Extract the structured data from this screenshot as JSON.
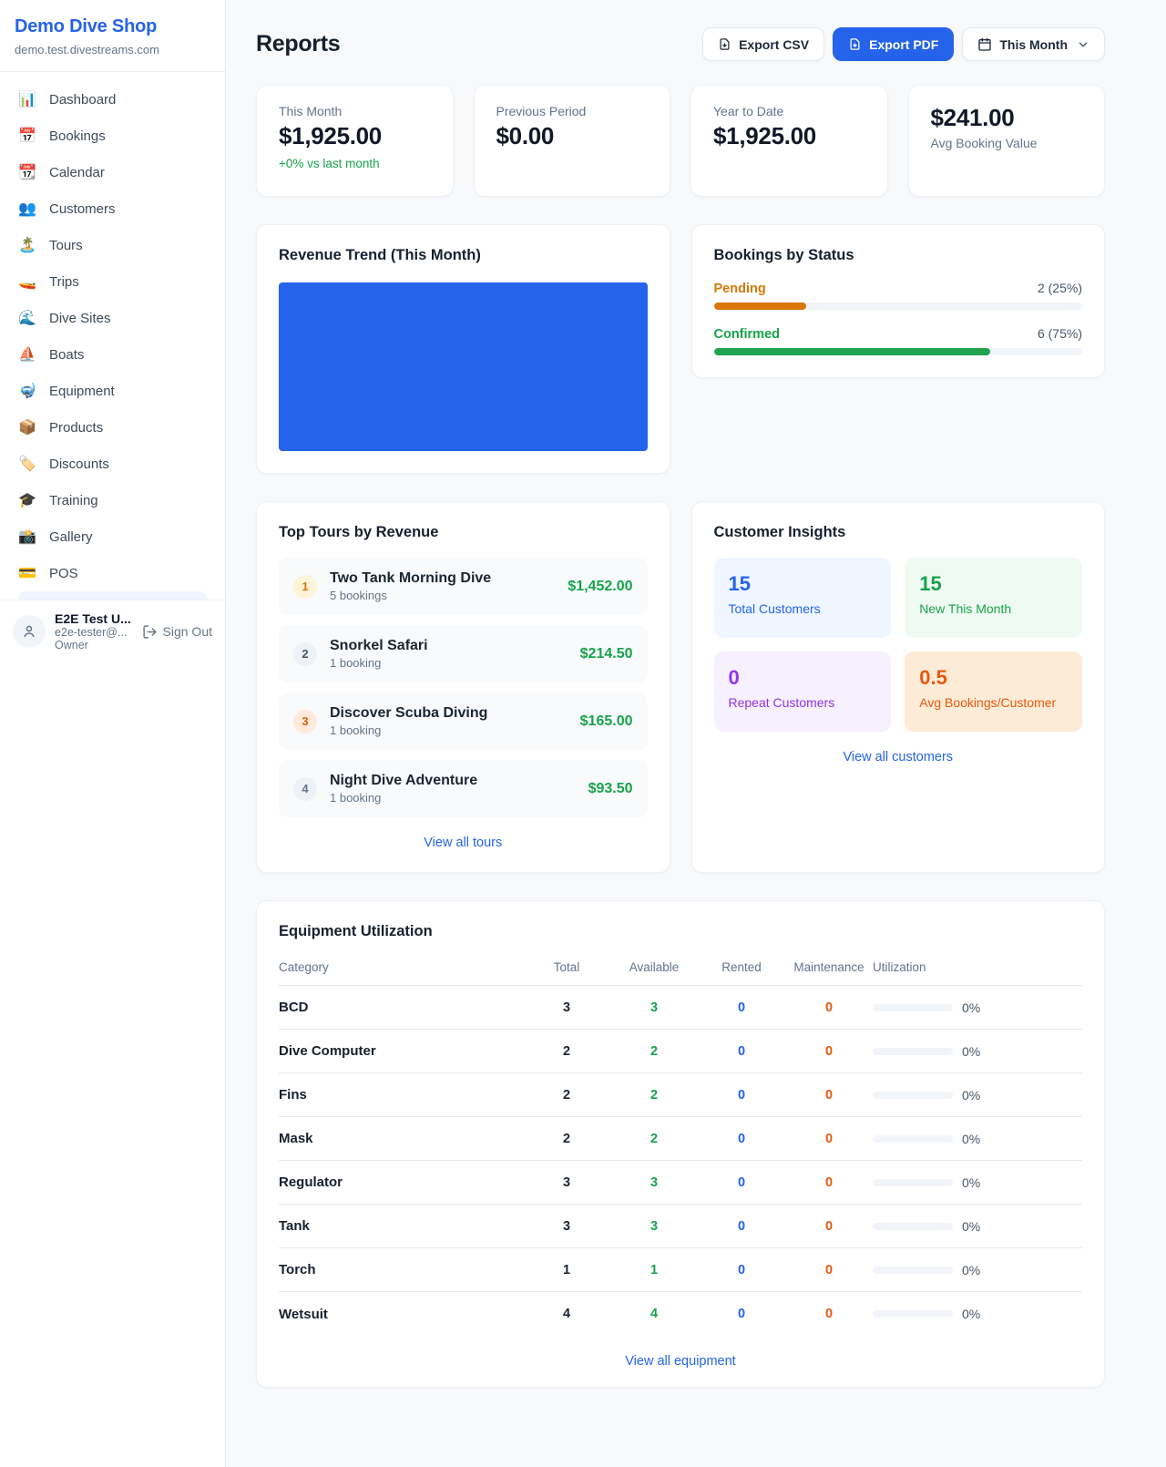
{
  "colors": {
    "accent_blue": "#2563eb",
    "green": "#16a34a",
    "orange_pending": "#d97706",
    "orange_deep": "#ea580c",
    "purple": "#9333ea",
    "page_bg": "#f7f9fb"
  },
  "sidebar": {
    "shop_name": "Demo Dive Shop",
    "shop_domain": "demo.test.divestreams.com",
    "items": [
      {
        "label": "Dashboard",
        "icon": "📊"
      },
      {
        "label": "Bookings",
        "icon": "📅"
      },
      {
        "label": "Calendar",
        "icon": "📆"
      },
      {
        "label": "Customers",
        "icon": "👥"
      },
      {
        "label": "Tours",
        "icon": "🏝️"
      },
      {
        "label": "Trips",
        "icon": "🚤"
      },
      {
        "label": "Dive Sites",
        "icon": "🌊"
      },
      {
        "label": "Boats",
        "icon": "⛵"
      },
      {
        "label": "Equipment",
        "icon": "🤿"
      },
      {
        "label": "Products",
        "icon": "📦"
      },
      {
        "label": "Discounts",
        "icon": "🏷️"
      },
      {
        "label": "Training",
        "icon": "🎓"
      },
      {
        "label": "Gallery",
        "icon": "📸"
      },
      {
        "label": "POS",
        "icon": "💳"
      }
    ],
    "user": {
      "name": "E2E Test U...",
      "email": "e2e-tester@...",
      "role": "Owner",
      "signout_label": "Sign Out"
    }
  },
  "header": {
    "title": "Reports",
    "export_csv_label": "Export CSV",
    "export_pdf_label": "Export PDF",
    "period_label": "This Month"
  },
  "stats": [
    {
      "label": "This Month",
      "value": "$1,925.00",
      "delta": "+0% vs last month"
    },
    {
      "label": "Previous Period",
      "value": "$0.00",
      "delta": ""
    },
    {
      "label": "Year to Date",
      "value": "$1,925.00",
      "delta": ""
    },
    {
      "label": "Avg Booking Value",
      "value": "$241.00",
      "delta": ""
    }
  ],
  "revenue_trend": {
    "title": "Revenue Trend (This Month)",
    "chart_note": "single solid blue filled block spanning full plot area",
    "fill_color": "#2563eb"
  },
  "bookings_by_status": {
    "title": "Bookings by Status",
    "statuses": [
      {
        "name": "Pending",
        "count_label": "2 (25%)",
        "pct": 25,
        "color": "#d97706"
      },
      {
        "name": "Confirmed",
        "count_label": "6 (75%)",
        "pct": 75,
        "color": "#16a34a"
      }
    ]
  },
  "top_tours": {
    "title": "Top Tours by Revenue",
    "view_all_label": "View all tours",
    "tours": [
      {
        "rank": "1",
        "name": "Two Tank Morning Dive",
        "bookings": "5 bookings",
        "revenue": "$1,452.00"
      },
      {
        "rank": "2",
        "name": "Snorkel Safari",
        "bookings": "1 booking",
        "revenue": "$214.50"
      },
      {
        "rank": "3",
        "name": "Discover Scuba Diving",
        "bookings": "1 booking",
        "revenue": "$165.00"
      },
      {
        "rank": "4",
        "name": "Night Dive Adventure",
        "bookings": "1 booking",
        "revenue": "$93.50"
      }
    ]
  },
  "customer_insights": {
    "title": "Customer Insights",
    "view_all_label": "View all customers",
    "tiles": [
      {
        "value": "15",
        "label": "Total Customers"
      },
      {
        "value": "15",
        "label": "New This Month"
      },
      {
        "value": "0",
        "label": "Repeat Customers"
      },
      {
        "value": "0.5",
        "label": "Avg Bookings/Customer"
      }
    ]
  },
  "equipment": {
    "title": "Equipment Utilization",
    "view_all_label": "View all equipment",
    "headers": {
      "category": "Category",
      "total": "Total",
      "available": "Available",
      "rented": "Rented",
      "maintenance": "Maintenance",
      "utilization": "Utilization"
    },
    "rows": [
      {
        "category": "BCD",
        "total": "3",
        "available": "3",
        "rented": "0",
        "maintenance": "0",
        "utilization_label": "0%",
        "utilization_pct": 0
      },
      {
        "category": "Dive Computer",
        "total": "2",
        "available": "2",
        "rented": "0",
        "maintenance": "0",
        "utilization_label": "0%",
        "utilization_pct": 0
      },
      {
        "category": "Fins",
        "total": "2",
        "available": "2",
        "rented": "0",
        "maintenance": "0",
        "utilization_label": "0%",
        "utilization_pct": 0
      },
      {
        "category": "Mask",
        "total": "2",
        "available": "2",
        "rented": "0",
        "maintenance": "0",
        "utilization_label": "0%",
        "utilization_pct": 0
      },
      {
        "category": "Regulator",
        "total": "3",
        "available": "3",
        "rented": "0",
        "maintenance": "0",
        "utilization_label": "0%",
        "utilization_pct": 0
      },
      {
        "category": "Tank",
        "total": "3",
        "available": "3",
        "rented": "0",
        "maintenance": "0",
        "utilization_label": "0%",
        "utilization_pct": 0
      },
      {
        "category": "Torch",
        "total": "1",
        "available": "1",
        "rented": "0",
        "maintenance": "0",
        "utilization_label": "0%",
        "utilization_pct": 0
      },
      {
        "category": "Wetsuit",
        "total": "4",
        "available": "4",
        "rented": "0",
        "maintenance": "0",
        "utilization_label": "0%",
        "utilization_pct": 0
      }
    ]
  }
}
